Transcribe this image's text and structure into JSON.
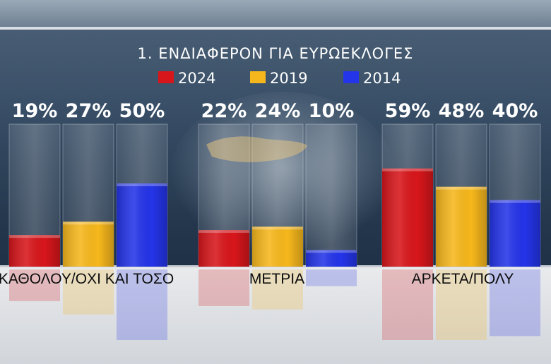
{
  "chart_data": {
    "type": "bar",
    "title": "1. ΕΝΔΙΑΦΕΡΟΝ ΓΙΑ ΕΥΡΩΕΚΛΟΓΕΣ",
    "categories": [
      "ΚΑΘΟΛΟΥ/ΟΧΙ ΚΑΙ ΤΟΣΟ",
      "ΜΕΤΡΙΑ",
      "ΑΡΚΕΤΑ/ΠΟΛΥ"
    ],
    "series": [
      {
        "name": "2024",
        "color": "#d7161b",
        "values": [
          19,
          22,
          59
        ],
        "labels": [
          "19%",
          "22%",
          "59%"
        ]
      },
      {
        "name": "2019",
        "color": "#f6b71c",
        "values": [
          27,
          24,
          48
        ],
        "labels": [
          "27%",
          "24%",
          "48%"
        ]
      },
      {
        "name": "2014",
        "color": "#2434e8",
        "values": [
          50,
          10,
          40
        ],
        "labels": [
          "50%",
          "10%",
          "40%"
        ]
      }
    ],
    "ylim": [
      0,
      100
    ],
    "legend_position": "top"
  }
}
